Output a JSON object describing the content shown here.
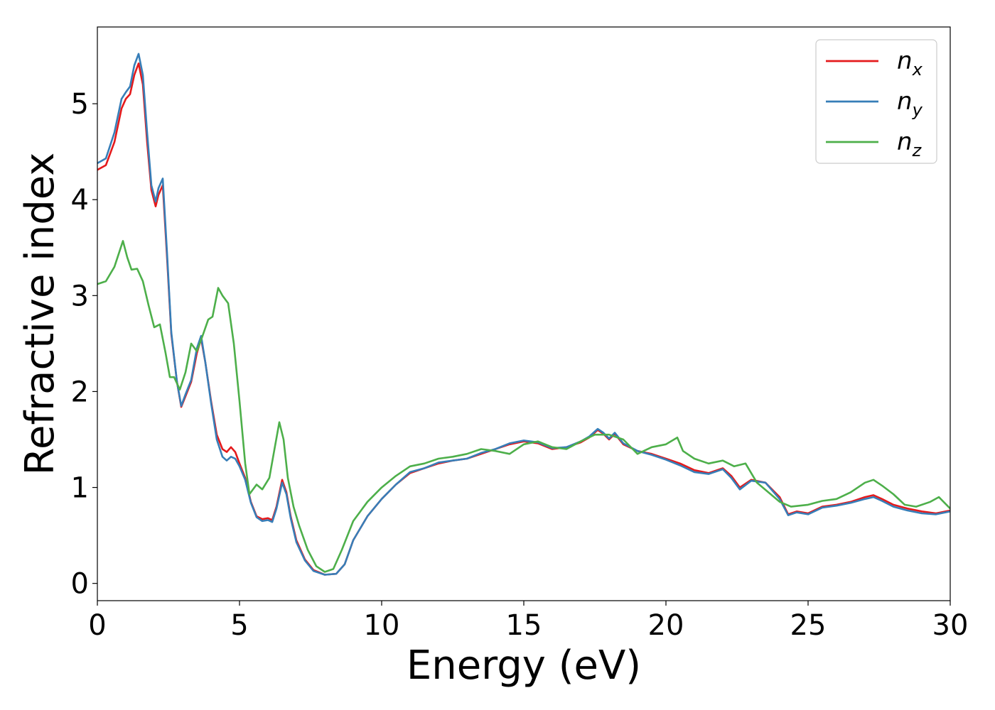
{
  "chart_data": {
    "type": "line",
    "xlabel": "Energy (eV)",
    "ylabel": "Refractive index",
    "xlim": [
      0,
      30
    ],
    "ylim": [
      -0.18,
      5.8
    ],
    "xticks": [
      0,
      5,
      10,
      15,
      20,
      25,
      30
    ],
    "yticks": [
      0,
      1,
      2,
      3,
      4,
      5
    ],
    "grid": false,
    "legend_position": "top-right",
    "series": [
      {
        "name": "n",
        "subscript": "x",
        "color": "#e41a1c",
        "points": [
          [
            0,
            4.31
          ],
          [
            0.3,
            4.36
          ],
          [
            0.6,
            4.6
          ],
          [
            0.85,
            4.95
          ],
          [
            1.0,
            5.05
          ],
          [
            1.15,
            5.1
          ],
          [
            1.3,
            5.3
          ],
          [
            1.45,
            5.42
          ],
          [
            1.6,
            5.2
          ],
          [
            1.75,
            4.6
          ],
          [
            1.9,
            4.1
          ],
          [
            2.05,
            3.93
          ],
          [
            2.15,
            4.05
          ],
          [
            2.3,
            4.15
          ],
          [
            2.45,
            3.4
          ],
          [
            2.6,
            2.6
          ],
          [
            2.8,
            2.1
          ],
          [
            2.95,
            1.84
          ],
          [
            3.1,
            1.95
          ],
          [
            3.3,
            2.1
          ],
          [
            3.5,
            2.4
          ],
          [
            3.65,
            2.55
          ],
          [
            3.8,
            2.3
          ],
          [
            4.0,
            1.9
          ],
          [
            4.2,
            1.55
          ],
          [
            4.4,
            1.4
          ],
          [
            4.55,
            1.37
          ],
          [
            4.7,
            1.42
          ],
          [
            4.85,
            1.37
          ],
          [
            5.0,
            1.25
          ],
          [
            5.2,
            1.1
          ],
          [
            5.4,
            0.85
          ],
          [
            5.6,
            0.7
          ],
          [
            5.8,
            0.67
          ],
          [
            6.0,
            0.68
          ],
          [
            6.15,
            0.66
          ],
          [
            6.3,
            0.8
          ],
          [
            6.5,
            1.08
          ],
          [
            6.65,
            0.95
          ],
          [
            6.8,
            0.7
          ],
          [
            7.0,
            0.45
          ],
          [
            7.3,
            0.25
          ],
          [
            7.6,
            0.14
          ],
          [
            8.0,
            0.09
          ],
          [
            8.4,
            0.1
          ],
          [
            8.7,
            0.2
          ],
          [
            9.0,
            0.45
          ],
          [
            9.5,
            0.7
          ],
          [
            10.0,
            0.88
          ],
          [
            10.5,
            1.03
          ],
          [
            11.0,
            1.15
          ],
          [
            11.5,
            1.2
          ],
          [
            12.0,
            1.25
          ],
          [
            12.5,
            1.28
          ],
          [
            13.0,
            1.3
          ],
          [
            13.5,
            1.35
          ],
          [
            14.0,
            1.4
          ],
          [
            14.5,
            1.45
          ],
          [
            15.0,
            1.48
          ],
          [
            15.5,
            1.46
          ],
          [
            16.0,
            1.4
          ],
          [
            16.5,
            1.42
          ],
          [
            17.0,
            1.47
          ],
          [
            17.3,
            1.52
          ],
          [
            17.6,
            1.6
          ],
          [
            17.8,
            1.56
          ],
          [
            18.0,
            1.5
          ],
          [
            18.2,
            1.56
          ],
          [
            18.5,
            1.45
          ],
          [
            19.0,
            1.38
          ],
          [
            19.5,
            1.35
          ],
          [
            20.0,
            1.3
          ],
          [
            20.5,
            1.25
          ],
          [
            21.0,
            1.18
          ],
          [
            21.5,
            1.15
          ],
          [
            22.0,
            1.2
          ],
          [
            22.3,
            1.12
          ],
          [
            22.6,
            1.0
          ],
          [
            23.0,
            1.08
          ],
          [
            23.5,
            1.05
          ],
          [
            24.0,
            0.9
          ],
          [
            24.3,
            0.72
          ],
          [
            24.6,
            0.75
          ],
          [
            25.0,
            0.73
          ],
          [
            25.5,
            0.8
          ],
          [
            26.0,
            0.82
          ],
          [
            26.5,
            0.85
          ],
          [
            27.0,
            0.9
          ],
          [
            27.3,
            0.92
          ],
          [
            27.6,
            0.88
          ],
          [
            28.0,
            0.82
          ],
          [
            28.5,
            0.78
          ],
          [
            29.0,
            0.75
          ],
          [
            29.5,
            0.73
          ],
          [
            30.0,
            0.76
          ]
        ]
      },
      {
        "name": "n",
        "subscript": "y",
        "color": "#377eb8",
        "points": [
          [
            0,
            4.38
          ],
          [
            0.3,
            4.43
          ],
          [
            0.6,
            4.7
          ],
          [
            0.85,
            5.05
          ],
          [
            1.0,
            5.12
          ],
          [
            1.15,
            5.18
          ],
          [
            1.3,
            5.4
          ],
          [
            1.45,
            5.52
          ],
          [
            1.6,
            5.3
          ],
          [
            1.75,
            4.7
          ],
          [
            1.9,
            4.15
          ],
          [
            2.05,
            3.98
          ],
          [
            2.15,
            4.12
          ],
          [
            2.3,
            4.22
          ],
          [
            2.45,
            3.45
          ],
          [
            2.6,
            2.62
          ],
          [
            2.8,
            2.1
          ],
          [
            2.95,
            1.85
          ],
          [
            3.1,
            1.97
          ],
          [
            3.3,
            2.12
          ],
          [
            3.5,
            2.45
          ],
          [
            3.65,
            2.58
          ],
          [
            3.8,
            2.3
          ],
          [
            4.0,
            1.88
          ],
          [
            4.2,
            1.5
          ],
          [
            4.4,
            1.32
          ],
          [
            4.55,
            1.28
          ],
          [
            4.7,
            1.32
          ],
          [
            4.85,
            1.3
          ],
          [
            5.0,
            1.22
          ],
          [
            5.2,
            1.08
          ],
          [
            5.4,
            0.84
          ],
          [
            5.6,
            0.69
          ],
          [
            5.8,
            0.65
          ],
          [
            6.0,
            0.66
          ],
          [
            6.15,
            0.64
          ],
          [
            6.3,
            0.78
          ],
          [
            6.5,
            1.05
          ],
          [
            6.65,
            0.93
          ],
          [
            6.8,
            0.68
          ],
          [
            7.0,
            0.43
          ],
          [
            7.3,
            0.24
          ],
          [
            7.6,
            0.13
          ],
          [
            8.0,
            0.09
          ],
          [
            8.4,
            0.1
          ],
          [
            8.7,
            0.2
          ],
          [
            9.0,
            0.45
          ],
          [
            9.5,
            0.7
          ],
          [
            10.0,
            0.88
          ],
          [
            10.5,
            1.03
          ],
          [
            11.0,
            1.16
          ],
          [
            11.5,
            1.2
          ],
          [
            12.0,
            1.26
          ],
          [
            12.5,
            1.28
          ],
          [
            13.0,
            1.3
          ],
          [
            13.5,
            1.36
          ],
          [
            14.0,
            1.4
          ],
          [
            14.5,
            1.46
          ],
          [
            15.0,
            1.49
          ],
          [
            15.5,
            1.47
          ],
          [
            16.0,
            1.41
          ],
          [
            16.5,
            1.42
          ],
          [
            17.0,
            1.48
          ],
          [
            17.3,
            1.53
          ],
          [
            17.6,
            1.61
          ],
          [
            17.8,
            1.57
          ],
          [
            18.0,
            1.51
          ],
          [
            18.2,
            1.57
          ],
          [
            18.5,
            1.46
          ],
          [
            19.0,
            1.38
          ],
          [
            19.5,
            1.34
          ],
          [
            20.0,
            1.29
          ],
          [
            20.5,
            1.23
          ],
          [
            21.0,
            1.16
          ],
          [
            21.5,
            1.14
          ],
          [
            22.0,
            1.19
          ],
          [
            22.3,
            1.1
          ],
          [
            22.6,
            0.98
          ],
          [
            23.0,
            1.07
          ],
          [
            23.5,
            1.05
          ],
          [
            24.0,
            0.88
          ],
          [
            24.3,
            0.71
          ],
          [
            24.6,
            0.74
          ],
          [
            25.0,
            0.72
          ],
          [
            25.5,
            0.79
          ],
          [
            26.0,
            0.81
          ],
          [
            26.5,
            0.84
          ],
          [
            27.0,
            0.88
          ],
          [
            27.3,
            0.9
          ],
          [
            27.6,
            0.86
          ],
          [
            28.0,
            0.8
          ],
          [
            28.5,
            0.76
          ],
          [
            29.0,
            0.73
          ],
          [
            29.5,
            0.72
          ],
          [
            30.0,
            0.75
          ]
        ]
      },
      {
        "name": "n",
        "subscript": "z",
        "color": "#4daf4a",
        "points": [
          [
            0,
            3.12
          ],
          [
            0.3,
            3.15
          ],
          [
            0.6,
            3.3
          ],
          [
            0.9,
            3.57
          ],
          [
            1.05,
            3.4
          ],
          [
            1.2,
            3.27
          ],
          [
            1.4,
            3.28
          ],
          [
            1.6,
            3.15
          ],
          [
            1.8,
            2.9
          ],
          [
            2.0,
            2.67
          ],
          [
            2.2,
            2.7
          ],
          [
            2.4,
            2.4
          ],
          [
            2.55,
            2.15
          ],
          [
            2.7,
            2.15
          ],
          [
            2.9,
            2.02
          ],
          [
            3.1,
            2.2
          ],
          [
            3.3,
            2.5
          ],
          [
            3.5,
            2.42
          ],
          [
            3.7,
            2.58
          ],
          [
            3.9,
            2.75
          ],
          [
            4.05,
            2.78
          ],
          [
            4.25,
            3.08
          ],
          [
            4.4,
            3.0
          ],
          [
            4.6,
            2.92
          ],
          [
            4.8,
            2.5
          ],
          [
            5.0,
            1.9
          ],
          [
            5.2,
            1.25
          ],
          [
            5.35,
            0.93
          ],
          [
            5.6,
            1.03
          ],
          [
            5.8,
            0.98
          ],
          [
            6.05,
            1.1
          ],
          [
            6.2,
            1.35
          ],
          [
            6.4,
            1.68
          ],
          [
            6.55,
            1.5
          ],
          [
            6.7,
            1.1
          ],
          [
            6.9,
            0.8
          ],
          [
            7.1,
            0.6
          ],
          [
            7.4,
            0.35
          ],
          [
            7.7,
            0.18
          ],
          [
            8.0,
            0.12
          ],
          [
            8.3,
            0.15
          ],
          [
            8.6,
            0.35
          ],
          [
            9.0,
            0.65
          ],
          [
            9.5,
            0.85
          ],
          [
            10.0,
            1.0
          ],
          [
            10.5,
            1.12
          ],
          [
            11.0,
            1.22
          ],
          [
            11.5,
            1.25
          ],
          [
            12.0,
            1.3
          ],
          [
            12.5,
            1.32
          ],
          [
            13.0,
            1.35
          ],
          [
            13.5,
            1.4
          ],
          [
            14.0,
            1.38
          ],
          [
            14.5,
            1.35
          ],
          [
            15.0,
            1.45
          ],
          [
            15.5,
            1.48
          ],
          [
            16.0,
            1.42
          ],
          [
            16.5,
            1.4
          ],
          [
            17.0,
            1.48
          ],
          [
            17.5,
            1.55
          ],
          [
            18.0,
            1.55
          ],
          [
            18.5,
            1.5
          ],
          [
            19.0,
            1.35
          ],
          [
            19.5,
            1.42
          ],
          [
            20.0,
            1.45
          ],
          [
            20.4,
            1.52
          ],
          [
            20.6,
            1.38
          ],
          [
            21.0,
            1.3
          ],
          [
            21.5,
            1.25
          ],
          [
            22.0,
            1.28
          ],
          [
            22.4,
            1.22
          ],
          [
            22.8,
            1.25
          ],
          [
            23.2,
            1.05
          ],
          [
            23.6,
            0.95
          ],
          [
            24.0,
            0.85
          ],
          [
            24.4,
            0.8
          ],
          [
            25.0,
            0.82
          ],
          [
            25.5,
            0.86
          ],
          [
            26.0,
            0.88
          ],
          [
            26.5,
            0.95
          ],
          [
            27.0,
            1.05
          ],
          [
            27.3,
            1.08
          ],
          [
            27.6,
            1.02
          ],
          [
            28.0,
            0.93
          ],
          [
            28.4,
            0.82
          ],
          [
            28.8,
            0.8
          ],
          [
            29.3,
            0.85
          ],
          [
            29.6,
            0.9
          ],
          [
            30.0,
            0.78
          ]
        ]
      }
    ]
  }
}
